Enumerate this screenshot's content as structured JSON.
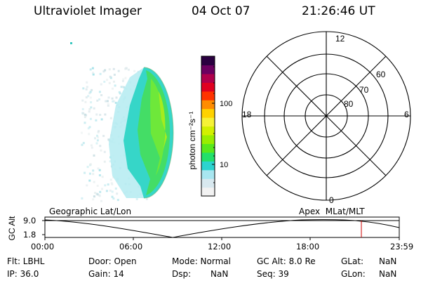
{
  "header": {
    "title": "Ultraviolet Imager",
    "date": "04 Oct 07",
    "time": "21:26:46 UT"
  },
  "colorbar": {
    "unit_label": "photon cm⁻²s⁻¹",
    "ticks": [
      "100",
      "10"
    ],
    "colors": [
      "#f2f2f2",
      "#d8e8ef",
      "#a8e6f0",
      "#2cd4cf",
      "#22e06a",
      "#58e81c",
      "#99ee00",
      "#d2f000",
      "#f6f236",
      "#ffd200",
      "#ff8c00",
      "#ff3300",
      "#e00020",
      "#b0004c",
      "#6c0060",
      "#2a0040"
    ]
  },
  "polar_plot": {
    "mlt_labels": {
      "top": "12",
      "bottom": "0",
      "left": "18",
      "right": "6"
    },
    "lat_labels": [
      "60",
      "70",
      "80"
    ]
  },
  "timeline": {
    "y_axis_label": "GC Alt",
    "y_max": "9.0",
    "y_min": "1.8",
    "left_caption": "Geographic Lat/Lon",
    "right_caption": "Apex  MLat/MLT",
    "x_ticks": [
      "00:00",
      "06:00",
      "12:00",
      "18:00",
      "23:59"
    ],
    "marker_color": "#cc0000"
  },
  "status": {
    "row1": [
      {
        "label": "Flt: LBHL"
      },
      {
        "label": "Door: Open"
      },
      {
        "label": "Mode: Normal"
      },
      {
        "label": "GC Alt: 8.0 Re"
      },
      {
        "label": "GLat:",
        "value": "NaN"
      }
    ],
    "row2": [
      {
        "label": "IP: 36.0"
      },
      {
        "label": "Gain: 14"
      },
      {
        "label": "Dsp:",
        "value": "NaN"
      },
      {
        "label": "Seq: 39"
      },
      {
        "label": "GLon:",
        "value": "NaN"
      }
    ]
  }
}
